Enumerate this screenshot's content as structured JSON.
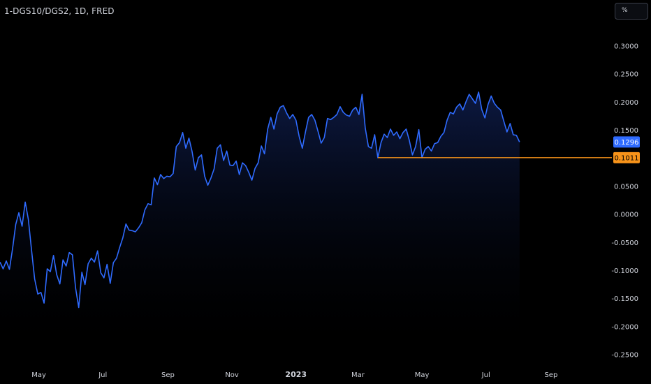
{
  "header": {
    "symbol": "1-DGS10/DGS2, 1D, FRED",
    "scale_button": "%"
  },
  "colors": {
    "background": "#000000",
    "line": "#2f6bff",
    "area_top": "#0d1a44",
    "reference_line": "#f7931a",
    "text": "#d1d4dc"
  },
  "chart_data": {
    "type": "area",
    "title": "1-DGS10/DGS2, 1D, FRED",
    "xlabel": "",
    "ylabel": "",
    "x_tick_labels": [
      "May",
      "Jul",
      "Sep",
      "Nov",
      "2023",
      "Mar",
      "May",
      "Jul",
      "Sep"
    ],
    "x_tick_dates": [
      "2022-05",
      "2022-07",
      "2022-09",
      "2022-11",
      "2023-01",
      "2023-03",
      "2023-05",
      "2023-07",
      "2023-09"
    ],
    "y_tick_labels": [
      "0.3000",
      "0.2500",
      "0.2000",
      "0.1500",
      "0.0500",
      "0.0000",
      "-0.0500",
      "-0.1000",
      "-0.1500",
      "-0.2000",
      "-0.2500"
    ],
    "ylim": [
      -0.25,
      0.3
    ],
    "xlim": [
      "2022-03-25",
      "2023-10-15"
    ],
    "grid": false,
    "series": [
      {
        "points": [
          [
            "2022-03-25",
            -0.085
          ],
          [
            "2022-03-28",
            -0.097
          ],
          [
            "2022-03-31",
            -0.083
          ],
          [
            "2022-04-03",
            -0.098
          ],
          [
            "2022-04-06",
            -0.061
          ],
          [
            "2022-04-09",
            -0.018
          ],
          [
            "2022-04-12",
            0.003
          ],
          [
            "2022-04-15",
            -0.021
          ],
          [
            "2022-04-18",
            0.022
          ],
          [
            "2022-04-21",
            -0.009
          ],
          [
            "2022-04-24",
            -0.063
          ],
          [
            "2022-04-27",
            -0.115
          ],
          [
            "2022-04-30",
            -0.142
          ],
          [
            "2022-05-03",
            -0.139
          ],
          [
            "2022-05-06",
            -0.158
          ],
          [
            "2022-05-09",
            -0.097
          ],
          [
            "2022-05-12",
            -0.102
          ],
          [
            "2022-05-15",
            -0.073
          ],
          [
            "2022-05-18",
            -0.107
          ],
          [
            "2022-05-21",
            -0.124
          ],
          [
            "2022-05-24",
            -0.081
          ],
          [
            "2022-05-27",
            -0.092
          ],
          [
            "2022-05-30",
            -0.068
          ],
          [
            "2022-06-02",
            -0.072
          ],
          [
            "2022-06-05",
            -0.131
          ],
          [
            "2022-06-08",
            -0.166
          ],
          [
            "2022-06-11",
            -0.103
          ],
          [
            "2022-06-14",
            -0.125
          ],
          [
            "2022-06-17",
            -0.088
          ],
          [
            "2022-06-20",
            -0.078
          ],
          [
            "2022-06-23",
            -0.085
          ],
          [
            "2022-06-26",
            -0.065
          ],
          [
            "2022-06-29",
            -0.104
          ],
          [
            "2022-07-02",
            -0.113
          ],
          [
            "2022-07-05",
            -0.089
          ],
          [
            "2022-07-08",
            -0.123
          ],
          [
            "2022-07-11",
            -0.086
          ],
          [
            "2022-07-14",
            -0.078
          ],
          [
            "2022-07-17",
            -0.059
          ],
          [
            "2022-07-20",
            -0.042
          ],
          [
            "2022-07-23",
            -0.017
          ],
          [
            "2022-07-26",
            -0.028
          ],
          [
            "2022-07-29",
            -0.029
          ],
          [
            "2022-08-01",
            -0.031
          ],
          [
            "2022-08-04",
            -0.024
          ],
          [
            "2022-08-07",
            -0.015
          ],
          [
            "2022-08-10",
            0.008
          ],
          [
            "2022-08-13",
            0.019
          ],
          [
            "2022-08-16",
            0.017
          ],
          [
            "2022-08-19",
            0.065
          ],
          [
            "2022-08-22",
            0.053
          ],
          [
            "2022-08-25",
            0.071
          ],
          [
            "2022-08-28",
            0.064
          ],
          [
            "2022-08-31",
            0.068
          ],
          [
            "2022-09-03",
            0.067
          ],
          [
            "2022-09-06",
            0.073
          ],
          [
            "2022-09-09",
            0.121
          ],
          [
            "2022-09-12",
            0.128
          ],
          [
            "2022-09-15",
            0.146
          ],
          [
            "2022-09-18",
            0.118
          ],
          [
            "2022-09-21",
            0.136
          ],
          [
            "2022-09-24",
            0.112
          ],
          [
            "2022-09-27",
            0.079
          ],
          [
            "2022-09-30",
            0.101
          ],
          [
            "2022-10-03",
            0.106
          ],
          [
            "2022-10-06",
            0.068
          ],
          [
            "2022-10-09",
            0.052
          ],
          [
            "2022-10-12",
            0.065
          ],
          [
            "2022-10-15",
            0.081
          ],
          [
            "2022-10-18",
            0.118
          ],
          [
            "2022-10-21",
            0.124
          ],
          [
            "2022-10-24",
            0.096
          ],
          [
            "2022-10-27",
            0.113
          ],
          [
            "2022-10-30",
            0.088
          ],
          [
            "2022-11-02",
            0.087
          ],
          [
            "2022-11-05",
            0.095
          ],
          [
            "2022-11-08",
            0.071
          ],
          [
            "2022-11-11",
            0.092
          ],
          [
            "2022-11-14",
            0.087
          ],
          [
            "2022-11-17",
            0.075
          ],
          [
            "2022-11-20",
            0.061
          ],
          [
            "2022-11-23",
            0.082
          ],
          [
            "2022-11-26",
            0.092
          ],
          [
            "2022-11-29",
            0.122
          ],
          [
            "2022-12-02",
            0.108
          ],
          [
            "2022-12-05",
            0.152
          ],
          [
            "2022-12-08",
            0.173
          ],
          [
            "2022-12-11",
            0.152
          ],
          [
            "2022-12-14",
            0.179
          ],
          [
            "2022-12-17",
            0.191
          ],
          [
            "2022-12-20",
            0.194
          ],
          [
            "2022-12-23",
            0.181
          ],
          [
            "2022-12-26",
            0.171
          ],
          [
            "2022-12-29",
            0.178
          ],
          [
            "2023-01-01",
            0.168
          ],
          [
            "2023-01-04",
            0.139
          ],
          [
            "2023-01-07",
            0.118
          ],
          [
            "2023-01-10",
            0.147
          ],
          [
            "2023-01-13",
            0.173
          ],
          [
            "2023-01-16",
            0.178
          ],
          [
            "2023-01-19",
            0.168
          ],
          [
            "2023-01-22",
            0.148
          ],
          [
            "2023-01-25",
            0.127
          ],
          [
            "2023-01-28",
            0.137
          ],
          [
            "2023-01-31",
            0.171
          ],
          [
            "2023-02-03",
            0.169
          ],
          [
            "2023-02-06",
            0.173
          ],
          [
            "2023-02-09",
            0.178
          ],
          [
            "2023-02-12",
            0.192
          ],
          [
            "2023-02-15",
            0.182
          ],
          [
            "2023-02-18",
            0.177
          ],
          [
            "2023-02-21",
            0.175
          ],
          [
            "2023-02-24",
            0.186
          ],
          [
            "2023-02-27",
            0.191
          ],
          [
            "2023-03-02",
            0.178
          ],
          [
            "2023-03-05",
            0.214
          ],
          [
            "2023-03-08",
            0.154
          ],
          [
            "2023-03-11",
            0.121
          ],
          [
            "2023-03-14",
            0.118
          ],
          [
            "2023-03-17",
            0.142
          ],
          [
            "2023-03-20",
            0.101
          ],
          [
            "2023-03-23",
            0.128
          ],
          [
            "2023-03-26",
            0.143
          ],
          [
            "2023-03-29",
            0.137
          ],
          [
            "2023-04-01",
            0.152
          ],
          [
            "2023-04-04",
            0.141
          ],
          [
            "2023-04-07",
            0.147
          ],
          [
            "2023-04-10",
            0.135
          ],
          [
            "2023-04-13",
            0.146
          ],
          [
            "2023-04-16",
            0.152
          ],
          [
            "2023-04-19",
            0.132
          ],
          [
            "2023-04-22",
            0.106
          ],
          [
            "2023-04-25",
            0.121
          ],
          [
            "2023-04-28",
            0.151
          ],
          [
            "2023-05-01",
            0.101
          ],
          [
            "2023-05-04",
            0.116
          ],
          [
            "2023-05-07",
            0.121
          ],
          [
            "2023-05-10",
            0.113
          ],
          [
            "2023-05-13",
            0.126
          ],
          [
            "2023-05-16",
            0.128
          ],
          [
            "2023-05-19",
            0.139
          ],
          [
            "2023-05-22",
            0.146
          ],
          [
            "2023-05-25",
            0.168
          ],
          [
            "2023-05-28",
            0.182
          ],
          [
            "2023-05-31",
            0.179
          ],
          [
            "2023-06-03",
            0.191
          ],
          [
            "2023-06-06",
            0.197
          ],
          [
            "2023-06-09",
            0.186
          ],
          [
            "2023-06-12",
            0.201
          ],
          [
            "2023-06-15",
            0.214
          ],
          [
            "2023-06-18",
            0.206
          ],
          [
            "2023-06-21",
            0.198
          ],
          [
            "2023-06-24",
            0.218
          ],
          [
            "2023-06-27",
            0.187
          ],
          [
            "2023-06-30",
            0.172
          ],
          [
            "2023-07-03",
            0.196
          ],
          [
            "2023-07-06",
            0.211
          ],
          [
            "2023-07-09",
            0.198
          ],
          [
            "2023-07-12",
            0.191
          ],
          [
            "2023-07-15",
            0.186
          ],
          [
            "2023-07-18",
            0.166
          ],
          [
            "2023-07-21",
            0.147
          ],
          [
            "2023-07-24",
            0.162
          ],
          [
            "2023-07-27",
            0.142
          ],
          [
            "2023-07-30",
            0.141
          ],
          [
            "2023-08-02",
            0.129
          ]
        ]
      }
    ],
    "last_value_label": "0.1296",
    "reference_line": {
      "value": 0.1011,
      "label": "0.1011",
      "start": "2023-03-20"
    }
  }
}
